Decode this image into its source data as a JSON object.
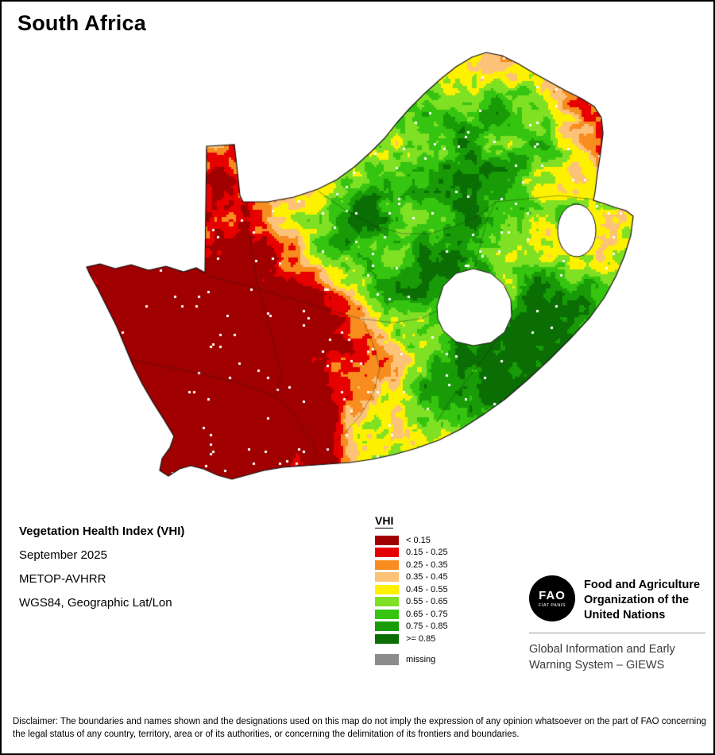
{
  "title": "South Africa",
  "info": {
    "heading": "Vegetation Health Index (VHI)",
    "date": "September 2025",
    "sensor": "METOP-AVHRR",
    "projection": "WGS84, Geographic Lat/Lon"
  },
  "legend": {
    "title": "VHI",
    "items": [
      {
        "label": "< 0.15",
        "color": "#a00000"
      },
      {
        "label": "0.15 - 0.25",
        "color": "#e60000"
      },
      {
        "label": "0.25 - 0.35",
        "color": "#f88c1e"
      },
      {
        "label": "0.35 - 0.45",
        "color": "#fcc277"
      },
      {
        "label": "0.45 - 0.55",
        "color": "#fdf100"
      },
      {
        "label": "0.55 - 0.65",
        "color": "#7fe024"
      },
      {
        "label": "0.65 - 0.75",
        "color": "#35c40f"
      },
      {
        "label": "0.75 - 0.85",
        "color": "#189b07"
      },
      {
        "label": ">= 0.85",
        "color": "#0b6e04"
      }
    ],
    "missing": {
      "label": "missing",
      "color": "#8c8c8c"
    }
  },
  "footer": {
    "fao_logo_text": "FAO",
    "fao_logo_motto": "FIAT PANIS",
    "fao_name": "Food and Agriculture\nOrganization of the\nUnited Nations",
    "giews": "Global Information and Early\nWarning System – GIEWS"
  },
  "disclaimer": "Disclaimer: The boundaries and names shown and the designations used on this map do not imply the expression of any opinion whatsoever on the part of FAO concerning the legal status of any country, territory, area or of its authorities, or concerning the delimitation of its frontiers and boundaries."
}
